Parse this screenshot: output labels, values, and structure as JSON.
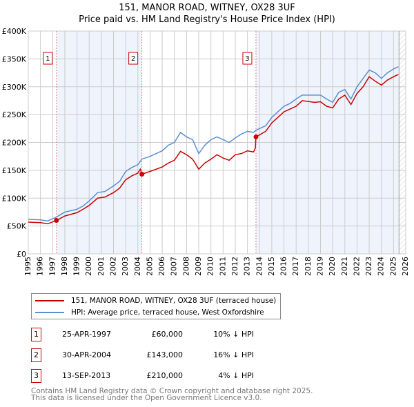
{
  "title": "151, MANOR ROAD, WITNEY, OX28 3UF",
  "subtitle": "Price paid vs. HM Land Registry's House Price Index (HPI)",
  "chart_data": {
    "type": "line",
    "xlim": [
      1995,
      2026
    ],
    "ylim": [
      0,
      400000
    ],
    "x_ticks": [
      "1995",
      "1996",
      "1997",
      "1998",
      "1999",
      "2000",
      "2001",
      "2002",
      "2003",
      "2004",
      "2005",
      "2006",
      "2007",
      "2008",
      "2009",
      "2010",
      "2011",
      "2012",
      "2013",
      "2014",
      "2015",
      "2016",
      "2017",
      "2018",
      "2019",
      "2020",
      "2021",
      "2022",
      "2023",
      "2024",
      "2025",
      "2026"
    ],
    "y_ticks": [
      {
        "v": 0,
        "l": "£0"
      },
      {
        "v": 50000,
        "l": "£50K"
      },
      {
        "v": 100000,
        "l": "£100K"
      },
      {
        "v": 150000,
        "l": "£150K"
      },
      {
        "v": 200000,
        "l": "£200K"
      },
      {
        "v": 250000,
        "l": "£250K"
      },
      {
        "v": 300000,
        "l": "£300K"
      },
      {
        "v": 350000,
        "l": "£350K"
      },
      {
        "v": 400000,
        "l": "£400K"
      }
    ],
    "grid": true,
    "shaded_periods": [
      [
        1997.31,
        2004.33
      ],
      [
        2013.7,
        2025.45
      ]
    ],
    "future_hatch_from": 2025.45,
    "series": [
      {
        "name": "151, MANOR ROAD, WITNEY, OX28 3UF (terraced house)",
        "color": "#cc0000",
        "x": [
          1995,
          1996,
          1996.6,
          1997.31,
          1998,
          1999,
          1999.5,
          2000,
          2000.7,
          2001.3,
          2002,
          2002.5,
          2003,
          2003.5,
          2004,
          2004.2,
          2004.33,
          2005,
          2006,
          2006.5,
          2007,
          2007.5,
          2008,
          2008.5,
          2009,
          2009.5,
          2010,
          2010.5,
          2011,
          2011.5,
          2012,
          2012.5,
          2013,
          2013.5,
          2013.65,
          2013.7,
          2014.5,
          2015,
          2015.5,
          2016,
          2016.5,
          2017,
          2017.5,
          2018.5,
          2019,
          2019.5,
          2020,
          2020.5,
          2021,
          2021.5,
          2022,
          2022.5,
          2023,
          2023.5,
          2024,
          2024.5,
          2025,
          2025.4
        ],
        "y": [
          57000,
          56000,
          54000,
          60000,
          68000,
          74000,
          80000,
          87000,
          100000,
          102000,
          110000,
          118000,
          133000,
          140000,
          145000,
          152000,
          143000,
          148000,
          156000,
          163000,
          168000,
          184000,
          178000,
          170000,
          152000,
          163000,
          170000,
          178000,
          172000,
          168000,
          178000,
          180000,
          185000,
          183000,
          190000,
          210000,
          220000,
          235000,
          245000,
          255000,
          260000,
          265000,
          275000,
          272000,
          273000,
          265000,
          262000,
          278000,
          285000,
          268000,
          288000,
          300000,
          318000,
          310000,
          303000,
          312000,
          318000,
          322000
        ]
      },
      {
        "name": "HPI: Average price, terraced house, West Oxfordshire",
        "color": "#5b8fd0",
        "x": [
          1995,
          1996,
          1996.6,
          1997.31,
          1998,
          1999,
          1999.5,
          2000,
          2000.7,
          2001.3,
          2002,
          2002.5,
          2003,
          2003.5,
          2004,
          2004.33,
          2005,
          2006,
          2006.5,
          2007,
          2007.5,
          2008,
          2008.5,
          2009,
          2009.5,
          2010,
          2010.5,
          2011,
          2011.5,
          2012,
          2012.5,
          2013,
          2013.5,
          2013.7,
          2014.5,
          2015,
          2015.5,
          2016,
          2016.5,
          2017,
          2017.5,
          2018.5,
          2019,
          2019.5,
          2020,
          2020.5,
          2021,
          2021.5,
          2022,
          2022.5,
          2023,
          2023.5,
          2024,
          2024.5,
          2025,
          2025.4
        ],
        "y": [
          62000,
          61000,
          59000,
          66000,
          75000,
          80000,
          86000,
          95000,
          110000,
          112000,
          122000,
          130000,
          148000,
          155000,
          160000,
          170000,
          175000,
          185000,
          195000,
          200000,
          218000,
          210000,
          205000,
          180000,
          195000,
          205000,
          210000,
          205000,
          200000,
          208000,
          215000,
          220000,
          218000,
          222000,
          230000,
          245000,
          255000,
          265000,
          270000,
          278000,
          285000,
          285000,
          285000,
          278000,
          272000,
          290000,
          295000,
          278000,
          300000,
          315000,
          330000,
          325000,
          315000,
          325000,
          332000,
          336000
        ]
      }
    ],
    "sales": [
      {
        "label": "1",
        "x": 1997.31,
        "y": 60000
      },
      {
        "label": "2",
        "x": 2004.33,
        "y": 143000
      },
      {
        "label": "3",
        "x": 2013.7,
        "y": 210000
      }
    ]
  },
  "legend": {
    "property": "151, MANOR ROAD, WITNEY, OX28 3UF (terraced house)",
    "hpi": "HPI: Average price, terraced house, West Oxfordshire"
  },
  "transactions": [
    {
      "num": "1",
      "date": "25-APR-1997",
      "price": "£60,000",
      "delta": "10% ↓ HPI"
    },
    {
      "num": "2",
      "date": "30-APR-2004",
      "price": "£143,000",
      "delta": "16% ↓ HPI"
    },
    {
      "num": "3",
      "date": "13-SEP-2013",
      "price": "£210,000",
      "delta": "4% ↓ HPI"
    }
  ],
  "footer": {
    "line1": "Contains HM Land Registry data © Crown copyright and database right 2025.",
    "line2": "This data is licensed under the Open Government Licence v3.0."
  }
}
